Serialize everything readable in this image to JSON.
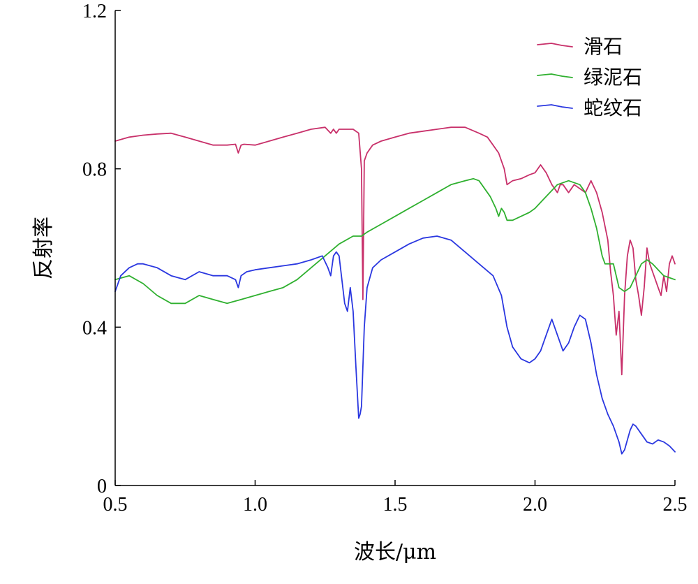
{
  "chart_data": {
    "type": "line",
    "title": "",
    "xlabel": "波长/μm",
    "ylabel": "反射率",
    "xlim": [
      0.5,
      2.5
    ],
    "ylim": [
      0,
      1.2
    ],
    "xticks": [
      "0.5",
      "1.0",
      "1.5",
      "2.0",
      "2.5"
    ],
    "yticks": [
      "0",
      "0.4",
      "0.8",
      "1.2"
    ],
    "grid": false,
    "legend_position": "top-right",
    "series": [
      {
        "name": "滑石",
        "color": "#c8306a",
        "x": [
          0.5,
          0.55,
          0.6,
          0.65,
          0.7,
          0.75,
          0.8,
          0.85,
          0.9,
          0.93,
          0.94,
          0.95,
          0.96,
          1.0,
          1.05,
          1.1,
          1.15,
          1.2,
          1.25,
          1.27,
          1.28,
          1.29,
          1.3,
          1.32,
          1.35,
          1.37,
          1.38,
          1.385,
          1.39,
          1.4,
          1.42,
          1.45,
          1.5,
          1.55,
          1.6,
          1.65,
          1.7,
          1.75,
          1.8,
          1.83,
          1.85,
          1.87,
          1.89,
          1.9,
          1.92,
          1.95,
          1.98,
          2.0,
          2.02,
          2.04,
          2.06,
          2.08,
          2.09,
          2.1,
          2.12,
          2.14,
          2.16,
          2.18,
          2.2,
          2.22,
          2.24,
          2.26,
          2.27,
          2.28,
          2.29,
          2.3,
          2.305,
          2.31,
          2.32,
          2.33,
          2.34,
          2.35,
          2.36,
          2.37,
          2.38,
          2.39,
          2.4,
          2.41,
          2.42,
          2.43,
          2.44,
          2.45,
          2.46,
          2.47,
          2.48,
          2.49,
          2.5
        ],
        "y": [
          0.87,
          0.88,
          0.885,
          0.888,
          0.89,
          0.88,
          0.87,
          0.86,
          0.86,
          0.862,
          0.84,
          0.86,
          0.862,
          0.86,
          0.87,
          0.88,
          0.89,
          0.9,
          0.905,
          0.89,
          0.9,
          0.89,
          0.9,
          0.9,
          0.9,
          0.89,
          0.8,
          0.47,
          0.82,
          0.84,
          0.86,
          0.87,
          0.88,
          0.89,
          0.895,
          0.9,
          0.905,
          0.905,
          0.89,
          0.88,
          0.86,
          0.84,
          0.8,
          0.76,
          0.77,
          0.775,
          0.785,
          0.79,
          0.81,
          0.79,
          0.76,
          0.74,
          0.76,
          0.76,
          0.74,
          0.76,
          0.75,
          0.74,
          0.77,
          0.74,
          0.69,
          0.62,
          0.54,
          0.48,
          0.38,
          0.44,
          0.36,
          0.28,
          0.48,
          0.58,
          0.62,
          0.6,
          0.52,
          0.48,
          0.43,
          0.5,
          0.6,
          0.56,
          0.54,
          0.52,
          0.5,
          0.48,
          0.53,
          0.49,
          0.56,
          0.58,
          0.56
        ]
      },
      {
        "name": "绿泥石",
        "color": "#2fb02f",
        "x": [
          0.5,
          0.55,
          0.6,
          0.65,
          0.7,
          0.75,
          0.8,
          0.85,
          0.9,
          0.95,
          1.0,
          1.05,
          1.1,
          1.15,
          1.2,
          1.25,
          1.3,
          1.35,
          1.38,
          1.4,
          1.45,
          1.5,
          1.55,
          1.6,
          1.65,
          1.7,
          1.75,
          1.78,
          1.8,
          1.84,
          1.86,
          1.87,
          1.88,
          1.89,
          1.9,
          1.92,
          1.95,
          1.98,
          2.0,
          2.04,
          2.08,
          2.12,
          2.16,
          2.18,
          2.2,
          2.22,
          2.24,
          2.25,
          2.26,
          2.28,
          2.3,
          2.32,
          2.34,
          2.36,
          2.38,
          2.4,
          2.42,
          2.44,
          2.46,
          2.48,
          2.5
        ],
        "y": [
          0.52,
          0.53,
          0.51,
          0.48,
          0.46,
          0.46,
          0.48,
          0.47,
          0.46,
          0.47,
          0.48,
          0.49,
          0.5,
          0.52,
          0.55,
          0.58,
          0.61,
          0.63,
          0.63,
          0.64,
          0.66,
          0.68,
          0.7,
          0.72,
          0.74,
          0.76,
          0.77,
          0.775,
          0.77,
          0.73,
          0.7,
          0.68,
          0.7,
          0.69,
          0.67,
          0.67,
          0.68,
          0.69,
          0.7,
          0.73,
          0.76,
          0.77,
          0.76,
          0.74,
          0.7,
          0.65,
          0.58,
          0.56,
          0.56,
          0.56,
          0.5,
          0.49,
          0.5,
          0.53,
          0.56,
          0.57,
          0.56,
          0.545,
          0.53,
          0.525,
          0.52
        ]
      },
      {
        "name": "蛇纹石",
        "color": "#2a37e0",
        "x": [
          0.5,
          0.52,
          0.55,
          0.58,
          0.6,
          0.65,
          0.7,
          0.75,
          0.8,
          0.85,
          0.9,
          0.93,
          0.94,
          0.95,
          0.97,
          1.0,
          1.05,
          1.1,
          1.15,
          1.2,
          1.24,
          1.26,
          1.27,
          1.28,
          1.29,
          1.3,
          1.32,
          1.33,
          1.34,
          1.35,
          1.36,
          1.37,
          1.375,
          1.38,
          1.385,
          1.39,
          1.4,
          1.42,
          1.45,
          1.5,
          1.55,
          1.6,
          1.65,
          1.7,
          1.75,
          1.8,
          1.85,
          1.88,
          1.9,
          1.92,
          1.95,
          1.98,
          2.0,
          2.02,
          2.04,
          2.06,
          2.08,
          2.1,
          2.12,
          2.14,
          2.16,
          2.18,
          2.2,
          2.22,
          2.24,
          2.26,
          2.28,
          2.3,
          2.31,
          2.32,
          2.34,
          2.35,
          2.36,
          2.38,
          2.4,
          2.42,
          2.44,
          2.46,
          2.48,
          2.5
        ],
        "y": [
          0.49,
          0.53,
          0.55,
          0.56,
          0.56,
          0.55,
          0.53,
          0.52,
          0.54,
          0.53,
          0.53,
          0.52,
          0.5,
          0.53,
          0.54,
          0.545,
          0.55,
          0.555,
          0.56,
          0.57,
          0.58,
          0.55,
          0.53,
          0.58,
          0.59,
          0.58,
          0.46,
          0.44,
          0.5,
          0.44,
          0.3,
          0.17,
          0.18,
          0.2,
          0.3,
          0.4,
          0.5,
          0.55,
          0.57,
          0.59,
          0.61,
          0.625,
          0.63,
          0.62,
          0.59,
          0.56,
          0.53,
          0.48,
          0.4,
          0.35,
          0.32,
          0.31,
          0.32,
          0.34,
          0.38,
          0.42,
          0.38,
          0.34,
          0.36,
          0.4,
          0.43,
          0.42,
          0.36,
          0.28,
          0.22,
          0.18,
          0.15,
          0.11,
          0.08,
          0.09,
          0.14,
          0.155,
          0.15,
          0.13,
          0.11,
          0.105,
          0.115,
          0.11,
          0.1,
          0.085
        ]
      }
    ]
  }
}
